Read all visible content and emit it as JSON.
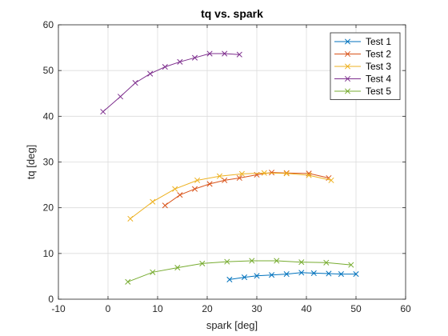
{
  "chart_data": {
    "type": "line",
    "title": "tq vs. spark",
    "xlabel": "spark [deg]",
    "ylabel": "tq [deg]",
    "xlim": [
      -10,
      60
    ],
    "ylim": [
      0,
      60
    ],
    "xticks": [
      "-10",
      "0",
      "10",
      "20",
      "30",
      "40",
      "50",
      "60"
    ],
    "yticks": [
      "0",
      "10",
      "20",
      "30",
      "40",
      "50",
      "60"
    ],
    "grid": true,
    "legend_position": "top-right",
    "marker": "x",
    "series": [
      {
        "name": "Test 1",
        "color": "#0072BD",
        "x": [
          24.5,
          27.5,
          30,
          33,
          36,
          39,
          41.5,
          44.5,
          47,
          50
        ],
        "y": [
          4.3,
          4.8,
          5.1,
          5.3,
          5.5,
          5.8,
          5.7,
          5.6,
          5.5,
          5.5
        ]
      },
      {
        "name": "Test 2",
        "color": "#D95319",
        "x": [
          11.5,
          14.5,
          17.5,
          20.5,
          23.5,
          26.5,
          30,
          33,
          36,
          40.5,
          44.5
        ],
        "y": [
          20.5,
          22.8,
          24.1,
          25.2,
          26.0,
          26.5,
          27.2,
          27.7,
          27.6,
          27.5,
          26.5
        ]
      },
      {
        "name": "Test 3",
        "color": "#EDB120",
        "x": [
          4.5,
          9,
          13.5,
          18,
          22.5,
          27,
          31.5,
          36,
          40.5,
          45
        ],
        "y": [
          17.6,
          21.3,
          24.1,
          26.0,
          26.9,
          27.4,
          27.6,
          27.5,
          27.1,
          26.0
        ]
      },
      {
        "name": "Test 4",
        "color": "#7E2F8E",
        "x": [
          -1,
          2.5,
          5.5,
          8.5,
          11.5,
          14.5,
          17.5,
          20.5,
          23.5,
          26.5
        ],
        "y": [
          41.0,
          44.3,
          47.3,
          49.3,
          50.8,
          51.9,
          52.8,
          53.7,
          53.7,
          53.5
        ]
      },
      {
        "name": "Test 5",
        "color": "#77AC30",
        "x": [
          4,
          9,
          14,
          19,
          24,
          29,
          34,
          39,
          44,
          49
        ],
        "y": [
          3.8,
          5.9,
          6.9,
          7.8,
          8.2,
          8.4,
          8.4,
          8.1,
          8.0,
          7.5
        ]
      }
    ]
  }
}
